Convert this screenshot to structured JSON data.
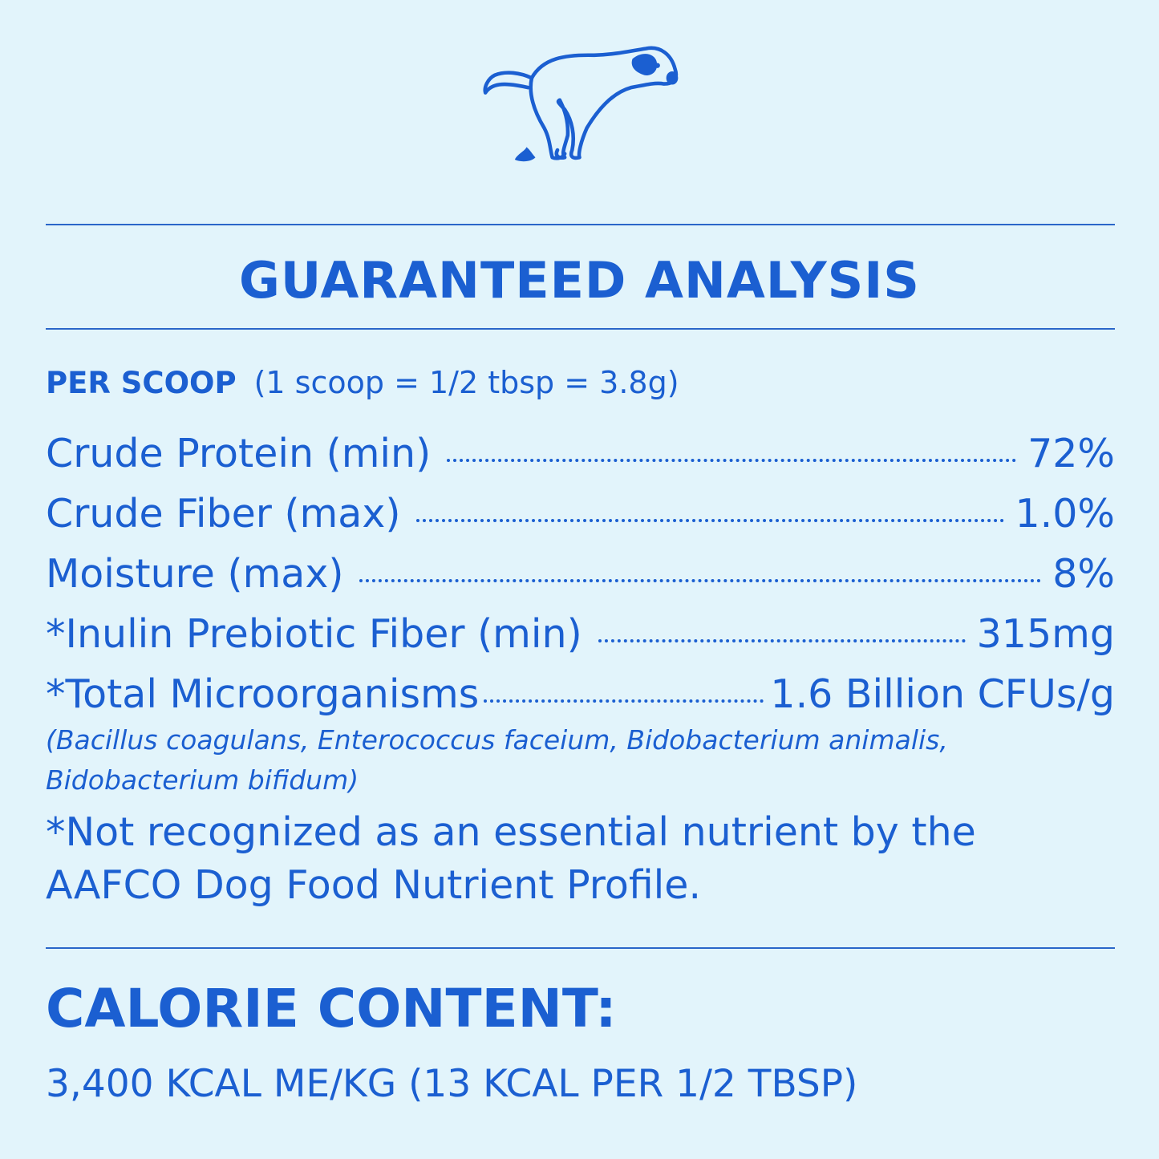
{
  "illustration": {
    "icon": "dog-pooping-icon",
    "color": "#1b5fd1"
  },
  "colors": {
    "background": "#e2f4fb",
    "text": "#1b5fd1"
  },
  "guaranteed_analysis": {
    "title": "GUARANTEED ANALYSIS",
    "per_scoop_label": "PER SCOOP",
    "per_scoop_detail": "(1 scoop = 1/2 tbsp = 3.8g)",
    "rows": [
      {
        "label": "Crude Protein (min)",
        "value": "72%"
      },
      {
        "label": "Crude Fiber (max)",
        "value": "1.0%"
      },
      {
        "label": "Moisture (max)",
        "value": "8%"
      },
      {
        "label": "*Inulin Prebiotic Fiber (min)",
        "value": "315mg"
      },
      {
        "label": "*Total Microorganisms",
        "value": "1.6 Billion CFUs/g"
      }
    ],
    "species_line1": "(Bacillus coagulans, Enterococcus faceium, Bidobacterium animalis,",
    "species_line2": "Bidobacterium bifidum)",
    "footnote_line1": "*Not recognized as an essential nutrient by the",
    "footnote_line2": "AAFCO Dog Food Nutrient Profile."
  },
  "calorie_content": {
    "title": "CALORIE CONTENT:",
    "text": "3,400 KCAL ME/KG (13 KCAL PER 1/2 TBSP)"
  }
}
